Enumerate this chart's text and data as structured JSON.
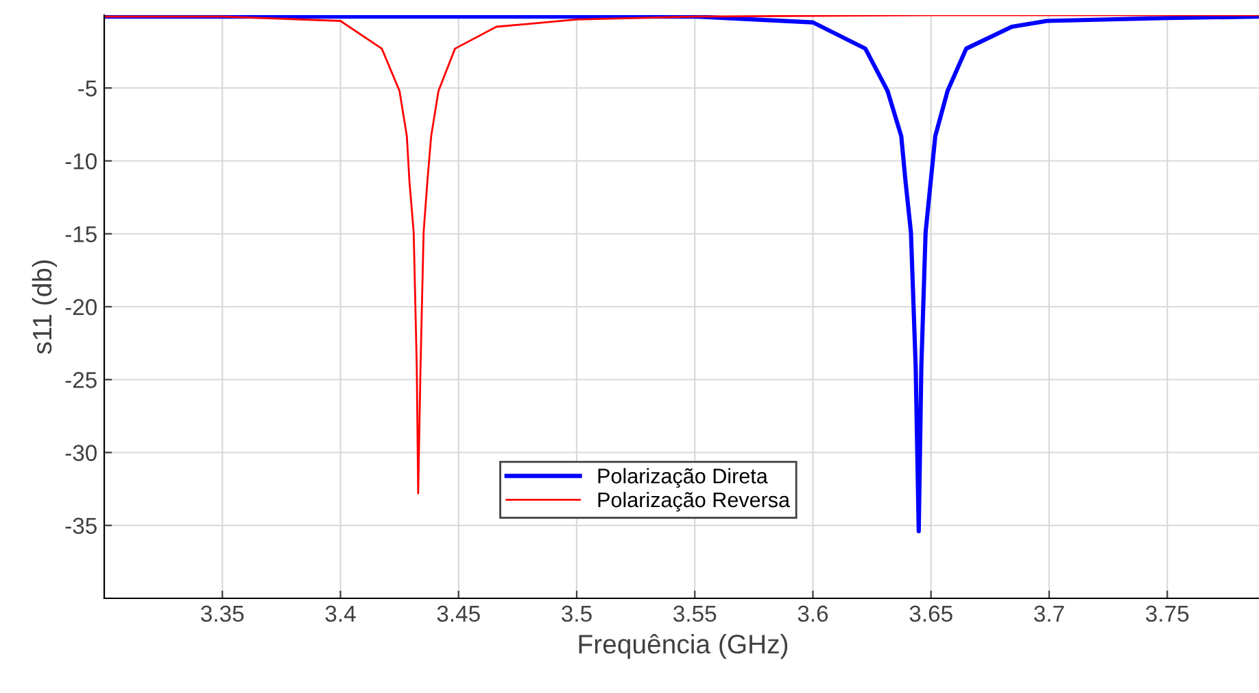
{
  "chart_data": {
    "type": "line",
    "xlabel": "Frequência (GHz)",
    "ylabel": "s11 (db)",
    "xlim": [
      3.3,
      3.79
    ],
    "xticks": [
      3.35,
      3.4,
      3.45,
      3.5,
      3.55,
      3.6,
      3.65,
      3.7,
      3.75
    ],
    "ylim": [
      -40,
      0
    ],
    "yticks": [
      -35,
      -30,
      -25,
      -20,
      -15,
      -10,
      -5
    ],
    "grid": true,
    "legend": "bottom",
    "line_style": "solid",
    "marker": "none",
    "series": [
      {
        "name": "Polarização Direta",
        "color": "#0000ff",
        "x": [
          3.3,
          3.4,
          3.5,
          3.55,
          3.6,
          3.6222,
          3.6316,
          3.6374,
          3.6392,
          3.6415,
          3.6435,
          3.6448,
          3.6459,
          3.6477,
          3.6518,
          3.657,
          3.6649,
          3.6842,
          3.699,
          3.75,
          3.79
        ],
        "values": [
          -0.1,
          -0.1,
          -0.1,
          -0.1,
          -0.5,
          -2.3,
          -5.2,
          -8.3,
          -11.4,
          -14.9,
          -24.1,
          -35.4,
          -24.1,
          -14.9,
          -8.3,
          -5.2,
          -2.3,
          -0.8,
          -0.4,
          -0.2,
          -0.1
        ]
      },
      {
        "name": "Polarização Reversa",
        "color": "#ff0000",
        "x": [
          3.3,
          3.35,
          3.4,
          3.4175,
          3.425,
          3.4281,
          3.4292,
          3.431,
          3.4323,
          3.4329,
          3.4339,
          3.4352,
          3.4368,
          3.4384,
          3.4415,
          3.4485,
          3.466,
          3.5,
          3.55,
          3.65,
          3.79
        ],
        "values": [
          -0.1,
          -0.1,
          -0.4,
          -2.3,
          -5.2,
          -8.3,
          -11.4,
          -14.9,
          -24.1,
          -32.8,
          -24.1,
          -14.9,
          -11.4,
          -8.3,
          -5.2,
          -2.3,
          -0.8,
          -0.3,
          -0.1,
          0,
          0
        ]
      }
    ]
  }
}
